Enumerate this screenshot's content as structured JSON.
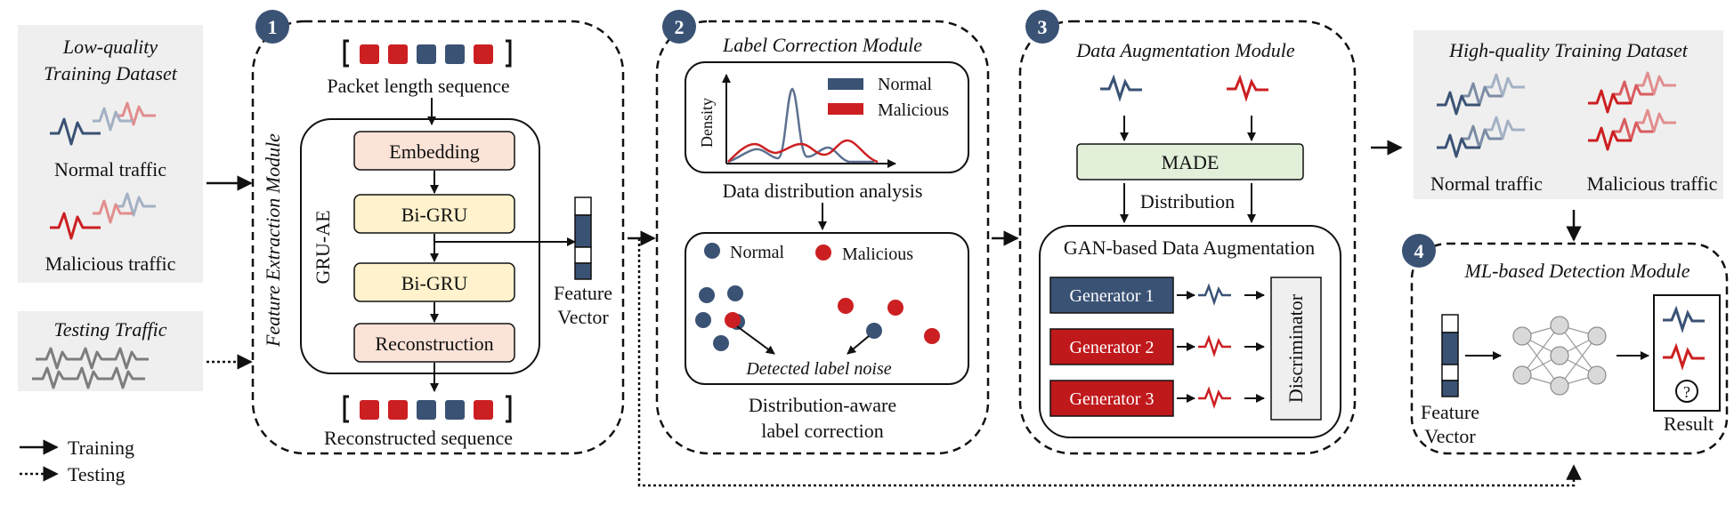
{
  "colors": {
    "normal": "#3a5274",
    "malicious": "#cc1f22",
    "normal_light": "#a4b1c4",
    "malicious_light": "#e28e8e",
    "testing_wave": "#7d7d7d",
    "panel_gray": "#efefef",
    "embedding_fill": "#fbe3d7",
    "gru_fill": "#fff2cc",
    "made_fill": "#e2efd9",
    "badge_fill": "#3a5274"
  },
  "input": {
    "low_quality_title_1": "Low-quality",
    "low_quality_title_2": "Training Dataset",
    "normal_traffic": "Normal traffic",
    "malicious_traffic": "Malicious traffic",
    "testing_title": "Testing Traffic"
  },
  "legend": {
    "training": "Training",
    "testing": "Testing"
  },
  "module1": {
    "badge": "1",
    "side_title": "Feature Extraction Module",
    "packet_seq_label": "Packet length sequence",
    "gru_ae_label": "GRU-AE",
    "embedding": "Embedding",
    "bigru_1": "Bi-GRU",
    "bigru_2": "Bi-GRU",
    "reconstruction": "Reconstruction",
    "reconstructed_label": "Reconstructed sequence",
    "feature_vector_1": "Feature",
    "feature_vector_2": "Vector",
    "seq_colors": [
      "malicious",
      "malicious",
      "normal",
      "normal",
      "malicious"
    ]
  },
  "module2": {
    "badge": "2",
    "title": "Label Correction Module",
    "density_axis": "Density",
    "legend_normal": "Normal",
    "legend_malicious": "Malicious",
    "distribution_caption": "Data distribution analysis",
    "dot_normal": "Normal",
    "dot_malicious": "Malicious",
    "noise_caption": "Detected label noise",
    "bottom_caption_1": "Distribution-aware",
    "bottom_caption_2": "label correction"
  },
  "module3": {
    "badge": "3",
    "title": "Data Augmentation Module",
    "made": "MADE",
    "distribution": "Distribution",
    "gan_title": "GAN-based Data Augmentation",
    "generators": [
      "Generator 1",
      "Generator 2",
      "Generator 3"
    ],
    "discriminator": "Discriminator"
  },
  "output": {
    "high_quality_title": "High-quality Training Dataset",
    "normal_traffic": "Normal traffic",
    "malicious_traffic": "Malicious traffic"
  },
  "module4": {
    "badge": "4",
    "title": "ML-based Detection Module",
    "feature_vector_1": "Feature",
    "feature_vector_2": "Vector",
    "result_unknown": "?",
    "result_label": "Result"
  }
}
